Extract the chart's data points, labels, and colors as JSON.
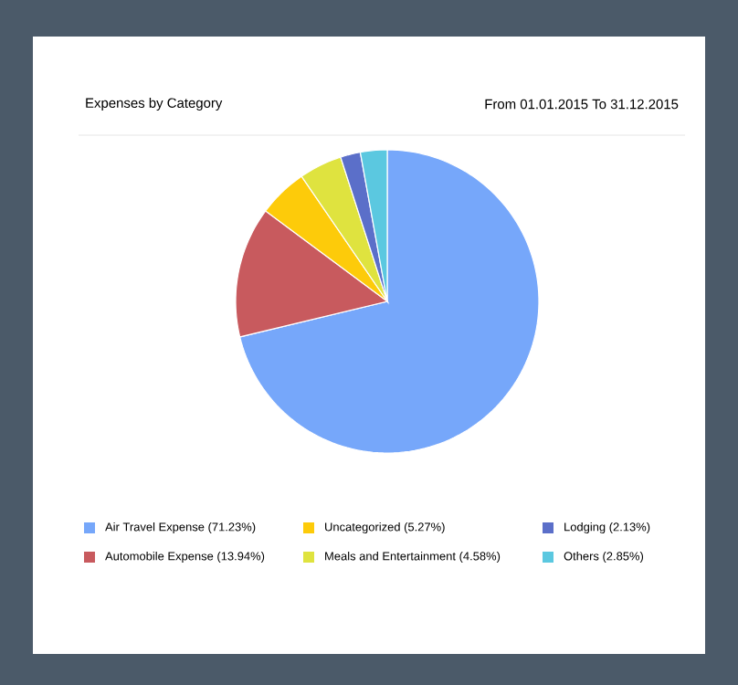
{
  "chart_data": {
    "type": "pie",
    "subtitle": "Expenses by Category",
    "annotations": [
      "From 01.01.2015 To 31.12.2015"
    ],
    "categories": [
      "Air Travel Expense (71.23%)",
      "Automobile Expense (13.94%)",
      "Uncategorized (5.27%)",
      "Meals and Entertainment (4.58%)",
      "Lodging (2.13%)",
      "Others (2.85%)"
    ],
    "values": [
      71.23,
      13.94,
      5.27,
      4.58,
      2.13,
      2.85
    ],
    "colors": [
      "#76a7fa",
      "#c85a5e",
      "#fdcb0a",
      "#dfe33f",
      "#5b6fc9",
      "#5bc8e0"
    ],
    "legend": "bottom"
  }
}
